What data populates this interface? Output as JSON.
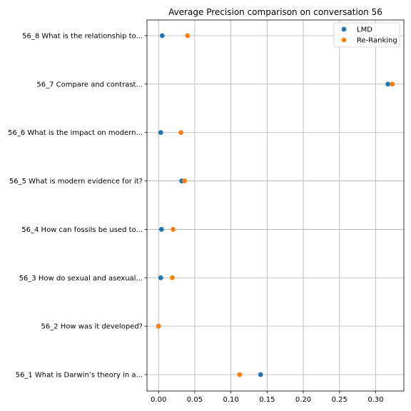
{
  "chart_data": {
    "type": "scatter",
    "title": "Average Precision comparison on conversation 56",
    "xlabel": "",
    "ylabel": "",
    "categories": [
      "56_1 What is Darwin’s theory in a...",
      "56_2 How was it developed?",
      "56_3 How do sexual and asexual...",
      "56_4 How can fossils be used to...",
      "56_5 What is modern evidence for it?",
      "56_6 What is the impact on modern...",
      "56_7 Compare and contrast...",
      "56_8 What is the relationship to..."
    ],
    "series": [
      {
        "name": "LMD",
        "color": "#1f77b4",
        "values": [
          0.141,
          0.0,
          0.003,
          0.004,
          0.032,
          0.003,
          0.317,
          0.005
        ]
      },
      {
        "name": "Re-Ranking",
        "color": "#ff7f0e",
        "values": [
          0.112,
          0.0,
          0.019,
          0.02,
          0.036,
          0.031,
          0.323,
          0.04
        ]
      }
    ],
    "xlim": [
      -0.016,
      0.339
    ],
    "xticks": [
      0.0,
      0.05,
      0.1,
      0.15,
      0.2,
      0.25,
      0.3
    ],
    "xtick_labels": [
      "0.00",
      "0.05",
      "0.10",
      "0.15",
      "0.20",
      "0.25",
      "0.30"
    ],
    "grid": true,
    "legend_position": "top-right"
  }
}
